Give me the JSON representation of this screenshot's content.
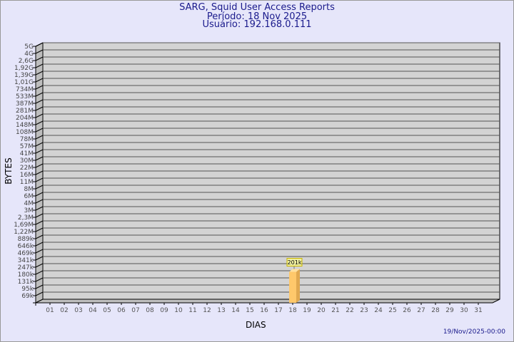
{
  "chart_data": {
    "type": "bar",
    "title": "SARG, Squid User Access Reports",
    "subtitle": [
      "Período: 18 Nov 2025",
      "Usuário: 192.168.0.111"
    ],
    "xlabel": "DIAS",
    "ylabel": "BYTES",
    "y_scale": "log",
    "grid": true,
    "y_tick_labels": [
      "5G",
      "4G",
      "2,6G",
      "1,92G",
      "1,39G",
      "1,01G",
      "734M",
      "533M",
      "387M",
      "281M",
      "204M",
      "148M",
      "108M",
      "78M",
      "57M",
      "41M",
      "30M",
      "22M",
      "16M",
      "11M",
      "8M",
      "6M",
      "4M",
      "3M",
      "2,3M",
      "1,69M",
      "1,22M",
      "889k",
      "646k",
      "469k",
      "341k",
      "247k",
      "180k",
      "131k",
      "95k",
      "69k"
    ],
    "categories": [
      "01",
      "02",
      "03",
      "04",
      "05",
      "06",
      "07",
      "08",
      "09",
      "10",
      "11",
      "12",
      "13",
      "14",
      "15",
      "16",
      "17",
      "18",
      "19",
      "20",
      "21",
      "22",
      "23",
      "24",
      "25",
      "26",
      "27",
      "28",
      "29",
      "30",
      "31"
    ],
    "bars": [
      {
        "category": "18",
        "value": 201000,
        "label": "201k"
      }
    ],
    "colors": {
      "bar": "#ffc86b",
      "bar_side": "#e0a850",
      "plot": "#d3d3d3",
      "title": "#1a1a8c",
      "background": "#e6e6fa"
    }
  },
  "footer": {
    "timestamp": "19/Nov/2025-00:00"
  }
}
